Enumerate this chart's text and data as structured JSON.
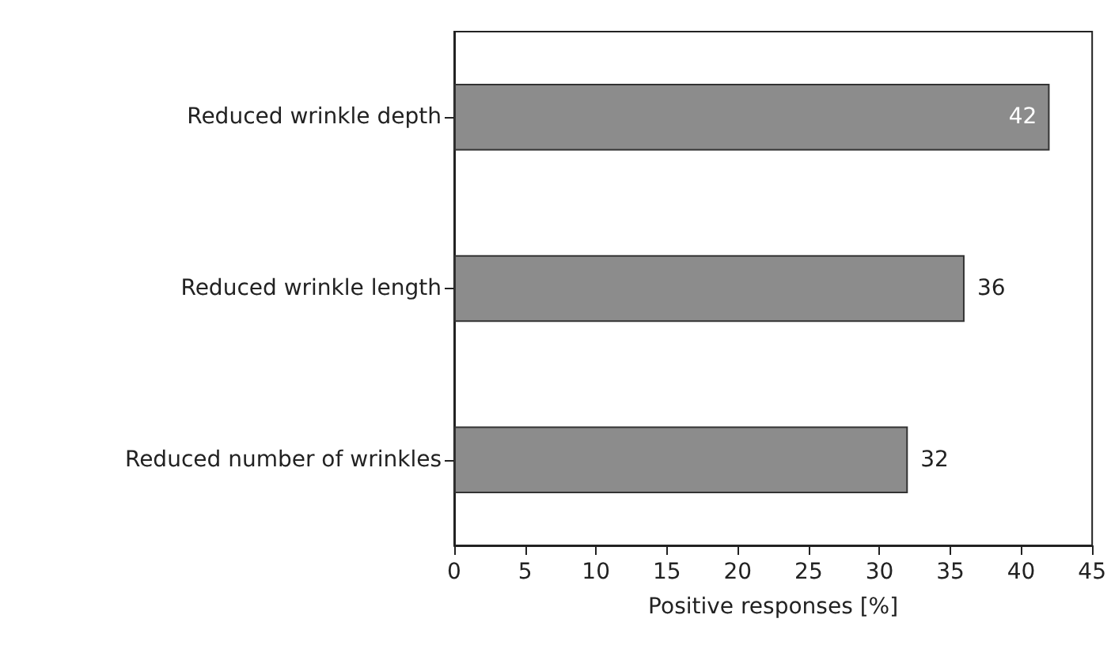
{
  "chart_data": {
    "type": "bar",
    "orientation": "horizontal",
    "xlabel": "Positive responses [%]",
    "categories": [
      "Reduced wrinkle depth",
      "Reduced wrinkle length",
      "Reduced number of wrinkles"
    ],
    "values": [
      42,
      36,
      32
    ],
    "color": "#8c8c8c",
    "xlim": [
      0,
      45
    ],
    "xticks": [
      0,
      5,
      10,
      15,
      20,
      25,
      30,
      35,
      40,
      45
    ],
    "grid": false,
    "data_labels": true
  }
}
